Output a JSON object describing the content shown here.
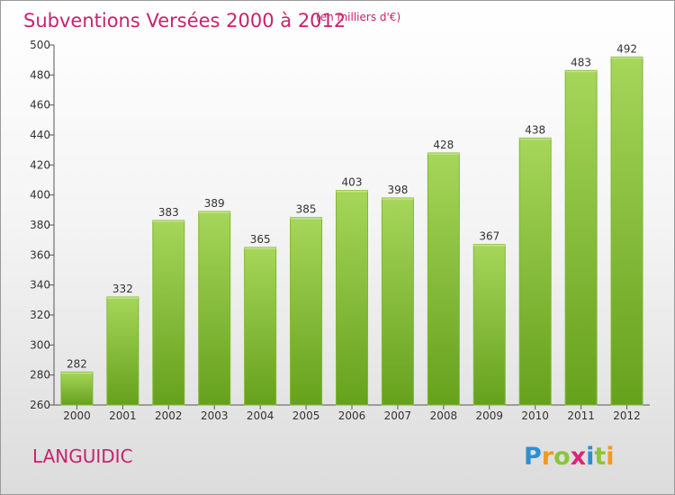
{
  "chart_data": {
    "type": "bar",
    "title": "Subventions Versées 2000 à 2012",
    "subtitle": "(en milliers d'€)",
    "categories": [
      "2000",
      "2001",
      "2002",
      "2003",
      "2004",
      "2005",
      "2006",
      "2007",
      "2008",
      "2009",
      "2010",
      "2011",
      "2012"
    ],
    "values": [
      282,
      332,
      383,
      389,
      365,
      385,
      403,
      398,
      428,
      367,
      438,
      483,
      492
    ],
    "ylim": [
      260,
      500
    ],
    "yticks": [
      260,
      280,
      300,
      320,
      340,
      360,
      380,
      400,
      420,
      440,
      460,
      480,
      500
    ],
    "xlabel": "",
    "ylabel": "",
    "grid": false,
    "bar_color": "#8cc43c"
  },
  "commune": "LANGUIDIC",
  "logo": {
    "letters": [
      "P",
      "r",
      "o",
      "x",
      "i",
      "t",
      "i"
    ],
    "colors": [
      "#2a8fd8",
      "#f39a1c",
      "#8cc43c",
      "#e0237a",
      "#2a8fd8",
      "#8cc43c",
      "#f39a1c"
    ]
  }
}
